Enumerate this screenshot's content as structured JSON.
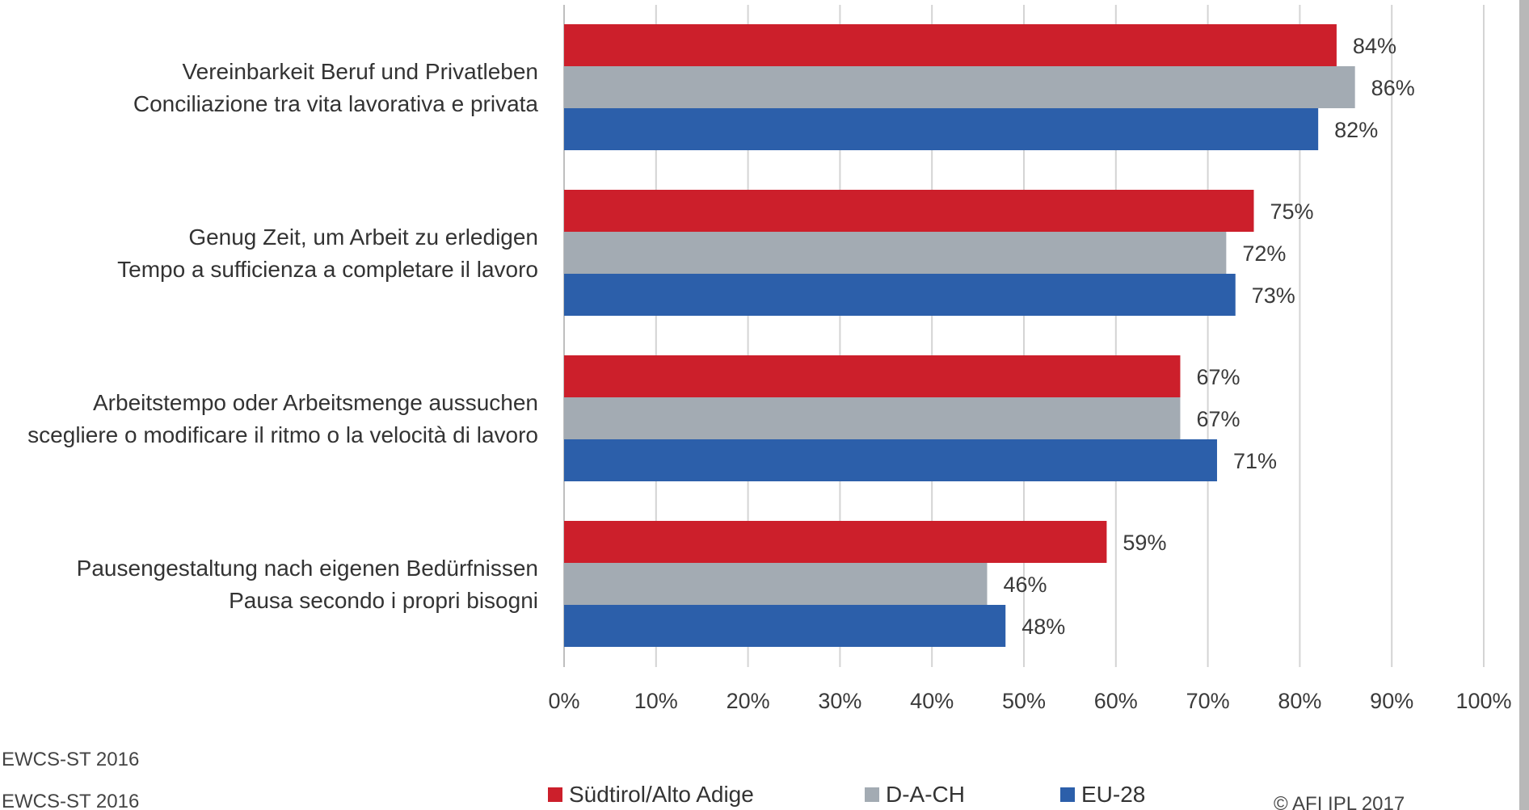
{
  "chart_data": {
    "type": "bar",
    "orientation": "horizontal",
    "categories": [
      [
        "Vereinbarkeit Beruf und Privatleben",
        "Conciliazione tra vita lavorativa e privata"
      ],
      [
        "Genug Zeit, um Arbeit zu erledigen",
        "Tempo a sufficienza a completare il lavoro"
      ],
      [
        "Arbeitstempo oder Arbeitsmenge aussuchen",
        "scegliere o modificare il ritmo o la velocità di lavoro"
      ],
      [
        "Pausengestaltung nach eigenen Bedürfnissen",
        "Pausa secondo i propri bisogni"
      ]
    ],
    "series": [
      {
        "name": "Südtirol/Alto Adige",
        "color": "#cc1f2b",
        "values": [
          84,
          75,
          67,
          59
        ],
        "labels": [
          "84%",
          "75%",
          "67%",
          "59%"
        ]
      },
      {
        "name": "D-A-CH",
        "color": "#a3abb3",
        "values": [
          86,
          72,
          67,
          46
        ],
        "labels": [
          "86%",
          "72%",
          "67%",
          "46%"
        ]
      },
      {
        "name": "EU-28",
        "color": "#2c5faa",
        "values": [
          82,
          73,
          71,
          48
        ],
        "labels": [
          "82%",
          "73%",
          "71%",
          "48%"
        ]
      }
    ],
    "xlim": [
      0,
      100
    ],
    "xticks": [
      "0%",
      "10%",
      "20%",
      "30%",
      "40%",
      "50%",
      "60%",
      "70%",
      "80%",
      "90%",
      "100%"
    ],
    "grid": true,
    "legend_position": "bottom"
  },
  "footer": {
    "source_line_1": "EWCS-ST 2016",
    "source_line_2": "EWCS-ST 2016",
    "copyright": "© AFI IPL 2017"
  },
  "colors": {
    "grid": "#d4d4d4",
    "axis": "#bfbfbf",
    "right_edge_bar": "#b8b8b8"
  }
}
